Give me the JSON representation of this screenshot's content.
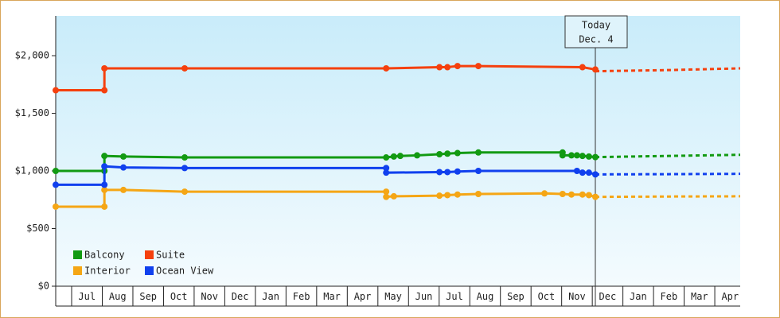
{
  "chart_data": {
    "type": "line",
    "xlim": [
      -0.52,
      21.83
    ],
    "xticks": [
      {
        "value": 0.5,
        "label": "Jul"
      },
      {
        "value": 1.5,
        "label": "Aug"
      },
      {
        "value": 2.5,
        "label": "Sep"
      },
      {
        "value": 3.5,
        "label": "Oct"
      },
      {
        "value": 4.5,
        "label": "Nov"
      },
      {
        "value": 5.5,
        "label": "Dec"
      },
      {
        "value": 6.5,
        "label": "Jan"
      },
      {
        "value": 7.5,
        "label": "Feb"
      },
      {
        "value": 8.5,
        "label": "Mar"
      },
      {
        "value": 9.5,
        "label": "Apr"
      },
      {
        "value": 10.5,
        "label": "May"
      },
      {
        "value": 11.5,
        "label": "Jun"
      },
      {
        "value": 12.5,
        "label": "Jul"
      },
      {
        "value": 13.5,
        "label": "Aug"
      },
      {
        "value": 14.5,
        "label": "Sep"
      },
      {
        "value": 15.5,
        "label": "Oct"
      },
      {
        "value": 16.5,
        "label": "Nov"
      },
      {
        "value": 17.5,
        "label": "Dec"
      },
      {
        "value": 18.5,
        "label": "Jan"
      },
      {
        "value": 19.5,
        "label": "Feb"
      },
      {
        "value": 20.5,
        "label": "Mar"
      },
      {
        "value": 21.5,
        "label": "Apr"
      }
    ],
    "ylim": [
      0,
      2345
    ],
    "yticks": [
      {
        "value": 0,
        "label": "$0"
      },
      {
        "value": 500,
        "label": "$500"
      },
      {
        "value": 1000,
        "label": "$1,000"
      },
      {
        "value": 1500,
        "label": "$1,500"
      },
      {
        "value": 2000,
        "label": "$2,000"
      }
    ],
    "legend": "lower-left",
    "annotation": {
      "x": 17.1,
      "lines": [
        "Today",
        "Dec. 4"
      ]
    },
    "series": [
      {
        "name": "Balcony",
        "color": "#129a12",
        "x": [
          -0.52,
          1.07,
          1.07,
          1.69,
          3.69,
          10.27,
          10.52,
          10.73,
          11.28,
          12.01,
          12.27,
          12.6,
          13.28,
          16.03,
          16.03,
          16.32,
          16.5,
          16.68,
          16.89,
          17.1
        ],
        "values": [
          1000,
          1000,
          1130,
          1125,
          1117,
          1117,
          1125,
          1130,
          1135,
          1145,
          1150,
          1155,
          1160,
          1160,
          1135,
          1135,
          1135,
          1130,
          1125,
          1120
        ],
        "forecast_x": [
          17.1,
          19.5,
          21.83
        ],
        "forecast_values": [
          1120,
          1130,
          1140
        ]
      },
      {
        "name": "Suite",
        "color": "#f5400e",
        "x": [
          -0.52,
          1.07,
          1.07,
          3.69,
          10.27,
          12.01,
          12.27,
          12.6,
          13.28,
          16.68,
          17.1
        ],
        "values": [
          1700,
          1700,
          1890,
          1890,
          1890,
          1900,
          1900,
          1910,
          1910,
          1900,
          1880
        ],
        "forecast_x": [
          17.1,
          19.5,
          21.83
        ],
        "forecast_values": [
          1865,
          1875,
          1890
        ]
      },
      {
        "name": "Interior",
        "color": "#f5a615",
        "x": [
          -0.52,
          1.07,
          1.07,
          1.69,
          3.69,
          10.27,
          10.27,
          10.52,
          12.01,
          12.27,
          12.6,
          13.28,
          15.44,
          16.03,
          16.32,
          16.68,
          16.89,
          17.1
        ],
        "values": [
          690,
          690,
          835,
          835,
          820,
          820,
          775,
          780,
          785,
          790,
          795,
          800,
          805,
          800,
          795,
          795,
          790,
          775
        ],
        "forecast_x": [
          17.1,
          19.5,
          21.83
        ],
        "forecast_values": [
          775,
          778,
          780
        ]
      },
      {
        "name": "Ocean View",
        "color": "#1040ee",
        "x": [
          -0.52,
          1.07,
          1.07,
          1.69,
          3.69,
          10.27,
          10.27,
          12.01,
          12.27,
          12.6,
          13.28,
          16.5,
          16.68,
          16.89,
          17.1
        ],
        "values": [
          880,
          880,
          1040,
          1030,
          1025,
          1025,
          985,
          990,
          990,
          995,
          1000,
          1000,
          985,
          985,
          970
        ],
        "forecast_x": [
          17.1,
          19.5,
          21.83
        ],
        "forecast_values": [
          970,
          972,
          975
        ]
      }
    ]
  }
}
